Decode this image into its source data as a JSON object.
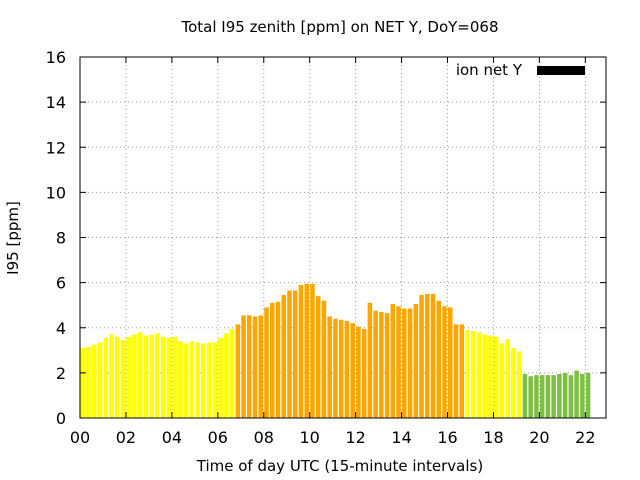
{
  "chart_data": {
    "type": "bar",
    "title": "Total I95 zenith [ppm] on NET Y, DoY=068",
    "xlabel": "Time of day UTC (15-minute intervals)",
    "ylabel": "I95 [ppm]",
    "ylim": [
      0,
      16
    ],
    "xlim": [
      0,
      22.9
    ],
    "grid": true,
    "x_tick_values": [
      0,
      2,
      4,
      6,
      8,
      10,
      12,
      14,
      16,
      18,
      20,
      22
    ],
    "x_tick_labels": [
      "00",
      "02",
      "04",
      "06",
      "08",
      "10",
      "12",
      "14",
      "16",
      "18",
      "20",
      "22"
    ],
    "y_tick_values": [
      0,
      2,
      4,
      6,
      8,
      10,
      12,
      14,
      16
    ],
    "y_tick_labels": [
      "0",
      "2",
      "4",
      "6",
      "8",
      "10",
      "12",
      "14",
      "16"
    ],
    "legend": {
      "label": "ion net Y",
      "color": "#000000",
      "position": "top-right"
    },
    "interval_hours": 0.25,
    "start_hour": 0,
    "colors": {
      "yellow": "#ffff00",
      "orange": "#ffa500",
      "green": "#7ec044"
    },
    "values": [
      3.1,
      3.15,
      3.25,
      3.35,
      3.55,
      3.7,
      3.6,
      3.45,
      3.6,
      3.7,
      3.8,
      3.65,
      3.7,
      3.75,
      3.6,
      3.55,
      3.6,
      3.4,
      3.3,
      3.4,
      3.35,
      3.3,
      3.35,
      3.35,
      3.55,
      3.75,
      3.95,
      4.15,
      4.55,
      4.55,
      4.5,
      4.55,
      4.9,
      5.1,
      5.15,
      5.45,
      5.65,
      5.65,
      5.9,
      5.95,
      5.95,
      5.4,
      5.2,
      4.5,
      4.4,
      4.35,
      4.3,
      4.2,
      4.05,
      3.95,
      5.1,
      4.75,
      4.7,
      4.65,
      5.05,
      4.95,
      4.85,
      4.85,
      5.05,
      5.45,
      5.5,
      5.5,
      5.2,
      4.95,
      4.9,
      4.15,
      4.15,
      3.9,
      3.85,
      3.8,
      3.7,
      3.65,
      3.6,
      3.3,
      3.5,
      3.1,
      2.95,
      1.95,
      1.85,
      1.9,
      1.9,
      1.9,
      1.9,
      1.95,
      2.0,
      1.9,
      2.1,
      1.95,
      2.0
    ],
    "bar_colors": [
      "yellow",
      "yellow",
      "yellow",
      "yellow",
      "yellow",
      "yellow",
      "yellow",
      "yellow",
      "yellow",
      "yellow",
      "yellow",
      "yellow",
      "yellow",
      "yellow",
      "yellow",
      "yellow",
      "yellow",
      "yellow",
      "yellow",
      "yellow",
      "yellow",
      "yellow",
      "yellow",
      "yellow",
      "yellow",
      "yellow",
      "yellow",
      "orange",
      "orange",
      "orange",
      "orange",
      "orange",
      "orange",
      "orange",
      "orange",
      "orange",
      "orange",
      "orange",
      "orange",
      "orange",
      "orange",
      "orange",
      "orange",
      "orange",
      "orange",
      "orange",
      "orange",
      "orange",
      "orange",
      "orange",
      "orange",
      "orange",
      "orange",
      "orange",
      "orange",
      "orange",
      "orange",
      "orange",
      "orange",
      "orange",
      "orange",
      "orange",
      "orange",
      "orange",
      "orange",
      "orange",
      "orange",
      "yellow",
      "yellow",
      "yellow",
      "yellow",
      "yellow",
      "yellow",
      "yellow",
      "yellow",
      "yellow",
      "yellow",
      "green",
      "green",
      "green",
      "green",
      "green",
      "green",
      "green",
      "green",
      "green",
      "green",
      "green",
      "green"
    ]
  }
}
